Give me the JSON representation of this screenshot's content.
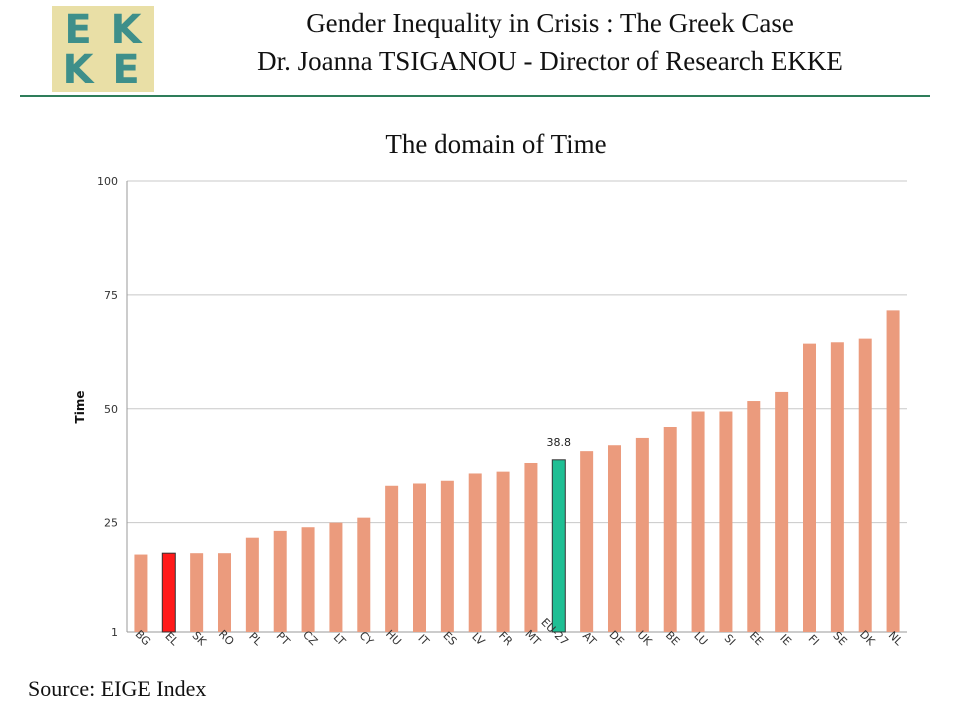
{
  "logo": {
    "row1": [
      "E",
      "K"
    ],
    "row2": [
      "K",
      "E"
    ]
  },
  "header": {
    "title": "Gender Inequality in Crisis : The Greek Case",
    "subtitle": "Dr. Joanna TSIGANOU - Director of Research EKKE"
  },
  "source": "Source: EIGE Index",
  "colors": {
    "bar": "#eb9b7d",
    "greece": "#ff1a1a",
    "eu": "#1fbf94",
    "grid": "#c8c8c8",
    "rule": "#2e7d5a"
  },
  "chart_data": {
    "type": "bar",
    "title": "The domain of Time",
    "ylabel": "Time",
    "xlabel": "",
    "ylim": [
      1,
      100
    ],
    "yticks": [
      1,
      25,
      50,
      75,
      100
    ],
    "grid": true,
    "categories": [
      "BG",
      "EL",
      "SK",
      "RO",
      "PL",
      "PT",
      "CZ",
      "LT",
      "CY",
      "HU",
      "IT",
      "ES",
      "LV",
      "FR",
      "MT",
      "EU-27",
      "AT",
      "DE",
      "UK",
      "BE",
      "LU",
      "SI",
      "EE",
      "IE",
      "FI",
      "SE",
      "DK",
      "NL"
    ],
    "values": [
      18.0,
      18.3,
      18.3,
      18.3,
      21.7,
      23.2,
      24.0,
      25.0,
      26.1,
      33.1,
      33.6,
      34.2,
      35.8,
      36.2,
      38.1,
      38.8,
      40.7,
      42.0,
      43.6,
      46.0,
      49.4,
      49.4,
      51.7,
      53.7,
      64.3,
      64.6,
      65.4,
      71.6
    ],
    "highlight": {
      "EL": "greece",
      "EU-27": "eu"
    },
    "data_labels": [
      {
        "category": "EU-27",
        "text": "38.8"
      }
    ]
  }
}
